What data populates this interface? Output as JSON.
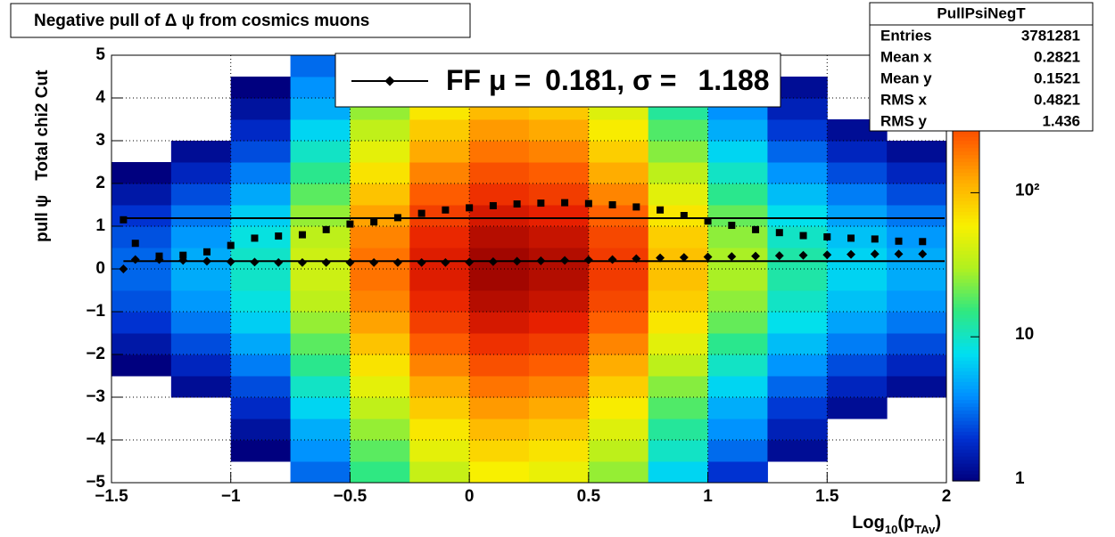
{
  "chart_data": {
    "type": "heatmap",
    "title": "Negative pull of Δ ψ from cosmics muons",
    "xlabel": [
      "Log",
      "10",
      "(p",
      "TAv",
      ")"
    ],
    "ylabel": "pull ψ   Total chi2 Cut",
    "xlim": [
      -1.5,
      2
    ],
    "ylim": [
      -5,
      5
    ],
    "xticks": [
      {
        "value": -1.5,
        "label": "−1.5"
      },
      {
        "value": -1,
        "label": "−1"
      },
      {
        "value": -0.5,
        "label": "−0.5"
      },
      0,
      0.5,
      1,
      1.5,
      2
    ],
    "yticks": [
      {
        "value": -5,
        "label": "−5"
      },
      {
        "value": -4,
        "label": "−4"
      },
      {
        "value": -3,
        "label": "−3"
      },
      {
        "value": -2,
        "label": "−2"
      },
      {
        "value": -1,
        "label": "−1"
      },
      0,
      1,
      2,
      3,
      4,
      5
    ],
    "grid": true,
    "zlog": true,
    "zlim": [
      1,
      900
    ],
    "zticks": [
      1,
      10,
      {
        "value": 100,
        "label": "10²"
      }
    ],
    "colormap": [
      "#00007f",
      "#0030d0",
      "#0090ff",
      "#00e0f0",
      "#30e880",
      "#b0f020",
      "#f8f000",
      "#ffb000",
      "#ff6000",
      "#e82000",
      "#900000"
    ],
    "heatmap": {
      "xbins": [
        -1.5,
        -1.25,
        -1,
        -0.75,
        -0.5,
        -0.25,
        0,
        0.25,
        0.5,
        0.75,
        1,
        1.25,
        1.5,
        1.75,
        2
      ],
      "ybins": [
        -5,
        -4.5,
        -4,
        -3.5,
        -3,
        -2.5,
        -2,
        -1.5,
        -1,
        -0.5,
        0,
        0.5,
        1,
        1.5,
        2,
        2.5,
        3,
        3.5,
        4,
        4.5,
        5
      ],
      "z": [
        [
          0.2,
          0.3,
          0.4,
          0.5,
          0.7,
          1,
          1.4,
          2,
          2.5,
          2.9,
          2.9,
          2.5,
          2,
          1.4,
          1,
          0.7,
          0.5,
          0.4,
          0.3,
          0.2
        ],
        [
          0.4,
          0.5,
          0.7,
          0.9,
          1.2,
          1.7,
          2.4,
          3.3,
          4.2,
          4.9,
          4.9,
          4.2,
          3.3,
          2.4,
          1.7,
          1.2,
          0.9,
          0.7,
          0.5,
          0.4
        ],
        [
          0.7,
          1,
          1.3,
          1.8,
          2.4,
          3.4,
          4.8,
          6.6,
          8.5,
          9.8,
          9.8,
          8.5,
          6.6,
          4.8,
          3.4,
          2.4,
          1.8,
          1.3,
          1,
          0.7
        ],
        [
          3,
          4,
          5,
          7,
          10,
          14,
          19,
          26,
          34,
          39,
          39,
          34,
          26,
          19,
          14,
          10,
          7,
          5,
          4,
          3
        ],
        [
          15,
          19,
          26,
          35,
          49,
          68,
          96,
          131,
          170,
          196,
          196,
          170,
          131,
          96,
          68,
          49,
          35,
          26,
          19,
          15
        ],
        [
          37,
          49,
          65,
          88,
          122,
          171,
          240,
          329,
          424,
          491,
          491,
          424,
          329,
          240,
          171,
          122,
          88,
          65,
          49,
          37
        ],
        [
          59,
          78,
          104,
          141,
          195,
          274,
          383,
          526,
          678,
          785,
          785,
          678,
          526,
          383,
          274,
          195,
          141,
          104,
          78,
          59
        ],
        [
          52,
          68,
          91,
          123,
          171,
          239,
          335,
          460,
          594,
          687,
          687,
          594,
          460,
          335,
          239,
          171,
          123,
          91,
          68,
          52
        ],
        [
          26,
          34,
          46,
          62,
          85,
          120,
          168,
          230,
          297,
          343,
          343,
          297,
          230,
          168,
          120,
          85,
          62,
          46,
          34,
          26
        ],
        [
          7,
          10,
          13,
          18,
          24,
          34,
          48,
          66,
          85,
          98,
          98,
          85,
          66,
          48,
          34,
          24,
          18,
          13,
          10,
          7
        ],
        [
          2,
          3,
          4,
          5,
          7,
          10,
          14,
          20,
          25,
          29,
          29,
          25,
          20,
          14,
          10,
          7,
          5,
          4,
          3,
          2
        ],
        [
          0.9,
          1.2,
          1.6,
          2.1,
          2.9,
          4.1,
          5.7,
          7.9,
          10,
          12,
          12,
          10,
          7.9,
          5.7,
          4.1,
          2.9,
          2.1,
          1.6,
          1.2,
          0.9
        ],
        [
          0.5,
          0.7,
          0.9,
          1.2,
          1.7,
          2.4,
          3.4,
          4.6,
          5.9,
          6.9,
          6.9,
          5.9,
          4.6,
          3.4,
          2.4,
          1.7,
          1.2,
          0.9,
          0.7,
          0.5
        ],
        [
          0.4,
          0.5,
          0.7,
          0.9,
          1.2,
          1.7,
          2.4,
          3.3,
          4.2,
          4.9,
          4.9,
          4.2,
          3.3,
          2.4,
          1.7,
          1.2,
          0.9,
          0.7,
          0.5,
          0.4
        ]
      ]
    },
    "x": [
      -1.45,
      -1.4,
      -1.3,
      -1.2,
      -1.1,
      -1.0,
      -0.9,
      -0.8,
      -0.7,
      -0.6,
      -0.5,
      -0.4,
      -0.3,
      -0.2,
      -0.1,
      0,
      0.1,
      0.2,
      0.3,
      0.4,
      0.5,
      0.6,
      0.7,
      0.8,
      0.9,
      1.0,
      1.1,
      1.2,
      1.3,
      1.4,
      1.5,
      1.6,
      1.7,
      1.8,
      1.9
    ],
    "series": [
      {
        "marker": "square",
        "color": "#000000",
        "values": [
          1.15,
          0.6,
          0.3,
          0.32,
          0.4,
          0.55,
          0.72,
          0.77,
          0.8,
          0.92,
          1.05,
          1.1,
          1.2,
          1.3,
          1.38,
          1.43,
          1.48,
          1.52,
          1.54,
          1.55,
          1.53,
          1.5,
          1.45,
          1.38,
          1.25,
          1.12,
          1.02,
          0.92,
          0.85,
          0.78,
          0.75,
          0.72,
          0.7,
          0.65,
          0.64
        ]
      },
      {
        "marker": "diamond",
        "color": "#000000",
        "values": [
          0,
          0.22,
          0.22,
          0.2,
          0.18,
          0.17,
          0.16,
          0.15,
          0.15,
          0.15,
          0.15,
          0.15,
          0.15,
          0.15,
          0.15,
          0.16,
          0.17,
          0.18,
          0.19,
          0.2,
          0.21,
          0.22,
          0.24,
          0.26,
          0.27,
          0.28,
          0.29,
          0.3,
          0.31,
          0.32,
          0.33,
          0.34,
          0.35,
          0.35,
          0.35
        ]
      }
    ],
    "legend": {
      "prefix": "FF μ =",
      "mu": 0.181,
      "sep": ", σ =",
      "sigma": 1.188
    },
    "stats": {
      "title": "PullPsiNegT",
      "rows": [
        [
          "Entries",
          3781281
        ],
        [
          "Mean x",
          0.2821
        ],
        [
          "Mean y",
          0.1521
        ],
        [
          "RMS x",
          0.4821
        ],
        [
          "RMS y",
          1.436
        ]
      ]
    }
  }
}
